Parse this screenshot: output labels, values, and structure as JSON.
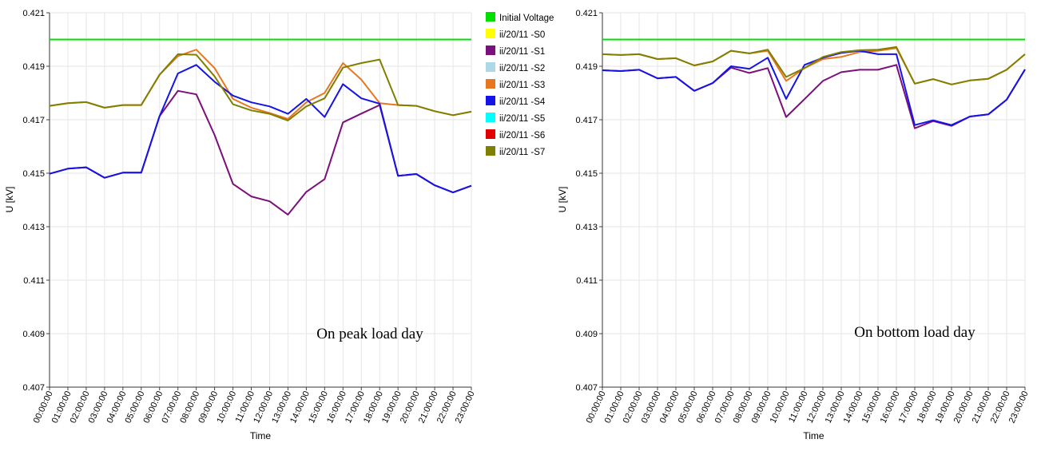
{
  "chart_data": [
    {
      "type": "line",
      "title": "",
      "annotation": "On peak load day",
      "xlabel": "Time",
      "ylabel": "U [kV]",
      "ylim": [
        0.407,
        0.421
      ],
      "yticks": [
        "0.407",
        "0.409",
        "0.411",
        "0.413",
        "0.415",
        "0.417",
        "0.419",
        "0.421"
      ],
      "categories": [
        "00:00:00",
        "01:00:00",
        "02:00:00",
        "03:00:00",
        "04:00:00",
        "05:00:00",
        "06:00:00",
        "07:00:00",
        "08:00:00",
        "09:00:00",
        "10:00:00",
        "11:00:00",
        "12:00:00",
        "13:00:00",
        "14:00:00",
        "15:00:00",
        "16:00:00",
        "17:00:00",
        "18:00:00",
        "19:00:00",
        "20:00:00",
        "21:00:00",
        "22:00:00",
        "23:00:00"
      ],
      "series": [
        {
          "name": "Initial Voltage",
          "color": "#00e000",
          "values": [
            0.42,
            0.42,
            0.42,
            0.42,
            0.42,
            0.42,
            0.42,
            0.42,
            0.42,
            0.42,
            0.42,
            0.42,
            0.42,
            0.42,
            0.42,
            0.42,
            0.42,
            0.42,
            0.42,
            0.42,
            0.42,
            0.42,
            0.42,
            0.42
          ]
        },
        {
          "name": "ii/20/11  -S3",
          "color": "#e87722",
          "values": [
            0.41752,
            0.41762,
            0.41766,
            0.41745,
            0.41755,
            0.41755,
            0.41868,
            0.41938,
            0.41962,
            0.41893,
            0.41778,
            0.41745,
            0.41725,
            0.41703,
            0.41765,
            0.418,
            0.41912,
            0.4185,
            0.41762,
            0.41755,
            0.41752,
            0.41732,
            0.41717,
            0.4173
          ]
        },
        {
          "name": "ii/20/11  -S1",
          "color": "#7b0f7b",
          "values": [
            0.41498,
            0.41517,
            0.41522,
            0.41483,
            0.41502,
            0.41502,
            0.41713,
            0.41808,
            0.41795,
            0.41643,
            0.4146,
            0.41413,
            0.41395,
            0.41345,
            0.4143,
            0.41478,
            0.4169,
            0.41723,
            0.41755,
            0.4149,
            0.41497,
            0.41455,
            0.41428,
            0.41453
          ]
        },
        {
          "name": "ii/20/11  -S4",
          "color": "#1414e6",
          "values": [
            0.41498,
            0.41517,
            0.41522,
            0.41483,
            0.41502,
            0.41502,
            0.41713,
            0.41873,
            0.41905,
            0.41842,
            0.4179,
            0.41765,
            0.4175,
            0.41722,
            0.41778,
            0.4171,
            0.41833,
            0.4178,
            0.4176,
            0.4149,
            0.41497,
            0.41455,
            0.41428,
            0.41453
          ]
        },
        {
          "name": "ii/20/11  -S7",
          "color": "#808000",
          "values": [
            0.41752,
            0.41762,
            0.41766,
            0.41745,
            0.41755,
            0.41755,
            0.41868,
            0.41945,
            0.41943,
            0.41862,
            0.41758,
            0.41735,
            0.41722,
            0.41697,
            0.4175,
            0.4178,
            0.41895,
            0.41912,
            0.41925,
            0.41755,
            0.41752,
            0.41732,
            0.41717,
            0.4173
          ]
        }
      ]
    },
    {
      "type": "line",
      "title": "",
      "annotation": "On bottom load day",
      "xlabel": "Time",
      "ylabel": "U [kV]",
      "ylim": [
        0.407,
        0.421
      ],
      "yticks": [
        "0.407",
        "0.409",
        "0.411",
        "0.413",
        "0.415",
        "0.417",
        "0.419",
        "0.421"
      ],
      "categories": [
        "00:00:00",
        "01:00:00",
        "02:00:00",
        "03:00:00",
        "04:00:00",
        "05:00:00",
        "06:00:00",
        "07:00:00",
        "08:00:00",
        "09:00:00",
        "10:00:00",
        "11:00:00",
        "12:00:00",
        "13:00:00",
        "14:00:00",
        "15:00:00",
        "16:00:00",
        "17:00:00",
        "18:00:00",
        "19:00:00",
        "20:00:00",
        "21:00:00",
        "22:00:00",
        "23:00:00"
      ],
      "series": [
        {
          "name": "Initial Voltage",
          "color": "#00e000",
          "values": [
            0.42,
            0.42,
            0.42,
            0.42,
            0.42,
            0.42,
            0.42,
            0.42,
            0.42,
            0.42,
            0.42,
            0.42,
            0.42,
            0.42,
            0.42,
            0.42,
            0.42,
            0.42,
            0.42,
            0.42,
            0.42,
            0.42,
            0.42,
            0.42
          ]
        },
        {
          "name": "ii/20/11  -S3",
          "color": "#e87722",
          "values": [
            0.41945,
            0.41942,
            0.41945,
            0.41927,
            0.4193,
            0.41903,
            0.41918,
            0.41958,
            0.41948,
            0.41958,
            0.41845,
            0.41893,
            0.41927,
            0.41935,
            0.41953,
            0.41958,
            0.41968,
            0.41835,
            0.41852,
            0.41832,
            0.41847,
            0.41853,
            0.41887,
            0.41945
          ]
        },
        {
          "name": "ii/20/11  -S1",
          "color": "#7b0f7b",
          "values": [
            0.41885,
            0.41882,
            0.41887,
            0.41855,
            0.4186,
            0.41808,
            0.41837,
            0.41895,
            0.41875,
            0.41893,
            0.4171,
            0.41777,
            0.41845,
            0.41878,
            0.41887,
            0.41887,
            0.41905,
            0.41668,
            0.41695,
            0.41677,
            0.41712,
            0.4172,
            0.41775,
            0.41888
          ]
        },
        {
          "name": "ii/20/11  -S4",
          "color": "#1414e6",
          "values": [
            0.41885,
            0.41882,
            0.41887,
            0.41855,
            0.4186,
            0.41808,
            0.41837,
            0.419,
            0.4189,
            0.41932,
            0.41778,
            0.41905,
            0.41932,
            0.4195,
            0.41958,
            0.41945,
            0.41945,
            0.4168,
            0.41698,
            0.4168,
            0.41712,
            0.4172,
            0.41775,
            0.41888
          ]
        },
        {
          "name": "ii/20/11  -S7",
          "color": "#808000",
          "values": [
            0.41945,
            0.41942,
            0.41945,
            0.41927,
            0.4193,
            0.41903,
            0.41918,
            0.41958,
            0.41948,
            0.41962,
            0.4186,
            0.41893,
            0.41935,
            0.41953,
            0.4196,
            0.41962,
            0.41972,
            0.41835,
            0.41852,
            0.41832,
            0.41847,
            0.41853,
            0.41887,
            0.41945
          ]
        }
      ]
    }
  ],
  "legend": {
    "items": [
      {
        "label": "Initial Voltage",
        "color": "#00e000"
      },
      {
        "label": "ii/20/11  -S0",
        "color": "#ffff00"
      },
      {
        "label": "ii/20/11  -S1",
        "color": "#7b0f7b"
      },
      {
        "label": "ii/20/11  -S2",
        "color": "#add8e6"
      },
      {
        "label": "ii/20/11  -S3",
        "color": "#e87722"
      },
      {
        "label": "ii/20/11  -S4",
        "color": "#1414e6"
      },
      {
        "label": "ii/20/11  -S5",
        "color": "#00ffff"
      },
      {
        "label": "ii/20/11  -S6",
        "color": "#e00000"
      },
      {
        "label": "ii/20/11  -S7",
        "color": "#808000"
      }
    ]
  }
}
